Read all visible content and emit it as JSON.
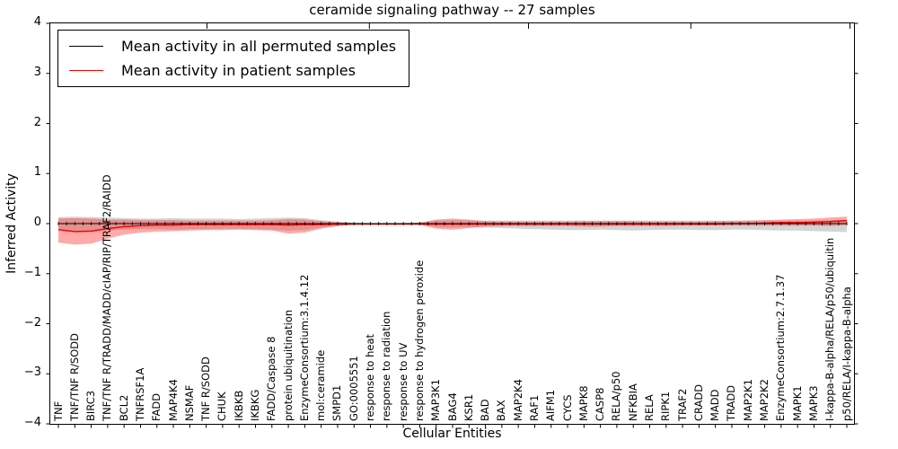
{
  "chart_data": {
    "type": "line",
    "title": "ceramide signaling pathway -- 27 samples",
    "xlabel": "Cellular Entities",
    "ylabel": "Inferred Activity",
    "ylim": [
      -4,
      4
    ],
    "yticks": [
      4,
      3,
      2,
      1,
      0,
      -1,
      -2,
      -3,
      -4
    ],
    "grid": false,
    "legend_position": "upper left",
    "categories": [
      "TNF",
      "TNF/TNF R/SODD",
      "BIRC3",
      "TNF/TNF R/TRADD/MADD/cIAP/RIP/TRAF2/RAIDD",
      "BCL2",
      "TNFRSF1A",
      "FADD",
      "MAP4K4",
      "NSMAF",
      "TNF R/SODD",
      "CHUK",
      "IKBKB",
      "IKBKG",
      "FADD/Caspase 8",
      "protein ubiquitination",
      "EnzymeConsortium:3.1.4.12",
      "mol:ceramide",
      "SMPD1",
      "GO:0005551",
      "response to heat",
      "response to radiation",
      "response to UV",
      "response to hydrogen peroxide",
      "MAP3K1",
      "BAG4",
      "KSR1",
      "BAD",
      "BAX",
      "MAP2K4",
      "RAF1",
      "AIFM1",
      "CYCS",
      "MAPK8",
      "CASP8",
      "RELA/p50",
      "NFKBIA",
      "RELA",
      "RIPK1",
      "TRAF2",
      "CRADD",
      "MADD",
      "TRADD",
      "MAP2K1",
      "MAP2K2",
      "EnzymeConsortium:2.7.1.37",
      "MAPK1",
      "MAPK3",
      "I-kappa-B-alpha/RELA/p50/ubiquitin",
      "p50/RELA/I-kappa-B-alpha"
    ],
    "series": [
      {
        "name": "Mean activity in all permuted samples",
        "color": "#000000",
        "band_color": "#aaaaaa",
        "values": [
          0,
          0,
          0,
          0,
          0,
          0,
          0,
          0,
          0,
          0,
          0,
          0,
          0,
          0,
          0,
          0,
          0,
          0,
          0,
          0,
          0,
          0,
          0,
          0,
          0,
          0,
          0,
          0,
          0,
          0,
          0,
          0,
          0,
          0,
          0,
          0,
          0,
          0,
          0,
          0,
          0,
          0,
          0,
          0,
          0,
          0,
          0,
          0,
          0
        ],
        "band_upper": [
          0.13,
          0.14,
          0.13,
          0.12,
          0.11,
          0.1,
          0.1,
          0.11,
          0.1,
          0.1,
          0.1,
          0.09,
          0.1,
          0.11,
          0.12,
          0.11,
          0.07,
          0.04,
          0.02,
          0.01,
          0.01,
          0.01,
          0.02,
          0.06,
          0.07,
          0.06,
          0.06,
          0.06,
          0.06,
          0.06,
          0.06,
          0.06,
          0.06,
          0.06,
          0.06,
          0.06,
          0.06,
          0.06,
          0.06,
          0.06,
          0.06,
          0.06,
          0.06,
          0.06,
          0.06,
          0.06,
          0.06,
          0.07,
          0.07
        ],
        "band_lower": [
          -0.13,
          -0.15,
          -0.14,
          -0.13,
          -0.12,
          -0.11,
          -0.11,
          -0.12,
          -0.11,
          -0.11,
          -0.1,
          -0.1,
          -0.11,
          -0.12,
          -0.14,
          -0.13,
          -0.08,
          -0.05,
          -0.02,
          -0.01,
          -0.01,
          -0.01,
          -0.02,
          -0.07,
          -0.08,
          -0.07,
          -0.08,
          -0.09,
          -0.1,
          -0.11,
          -0.12,
          -0.13,
          -0.13,
          -0.12,
          -0.13,
          -0.14,
          -0.13,
          -0.12,
          -0.12,
          -0.13,
          -0.13,
          -0.12,
          -0.12,
          -0.13,
          -0.14,
          -0.14,
          -0.15,
          -0.16,
          -0.17
        ]
      },
      {
        "name": "Mean activity in patient samples",
        "color": "#ff0000",
        "band_color": "#ff3333",
        "values": [
          -0.12,
          -0.16,
          -0.15,
          -0.1,
          -0.06,
          -0.04,
          -0.03,
          -0.03,
          -0.02,
          -0.02,
          -0.02,
          -0.02,
          -0.02,
          -0.02,
          -0.03,
          -0.02,
          -0.02,
          -0.01,
          -0.01,
          -0.01,
          -0.01,
          -0.01,
          -0.01,
          -0.01,
          -0.01,
          -0.01,
          -0.01,
          -0.01,
          -0.01,
          -0.01,
          -0.01,
          -0.01,
          -0.01,
          -0.01,
          -0.01,
          -0.01,
          -0.01,
          -0.01,
          -0.01,
          -0.01,
          -0.01,
          0.0,
          0.0,
          0.01,
          0.02,
          0.02,
          0.03,
          0.04,
          0.06
        ],
        "band_upper": [
          0.1,
          0.11,
          0.1,
          0.08,
          0.08,
          0.07,
          0.07,
          0.07,
          0.06,
          0.06,
          0.06,
          0.06,
          0.06,
          0.07,
          0.09,
          0.08,
          0.05,
          0.03,
          0.01,
          0.01,
          0.01,
          0.01,
          0.02,
          0.08,
          0.1,
          0.08,
          0.05,
          0.04,
          0.04,
          0.04,
          0.04,
          0.04,
          0.05,
          0.05,
          0.05,
          0.05,
          0.04,
          0.04,
          0.04,
          0.04,
          0.05,
          0.05,
          0.06,
          0.07,
          0.08,
          0.09,
          0.1,
          0.12,
          0.14
        ],
        "band_lower": [
          -0.38,
          -0.42,
          -0.4,
          -0.3,
          -0.22,
          -0.18,
          -0.16,
          -0.15,
          -0.14,
          -0.13,
          -0.13,
          -0.12,
          -0.13,
          -0.14,
          -0.2,
          -0.18,
          -0.1,
          -0.05,
          -0.02,
          -0.01,
          -0.01,
          -0.01,
          -0.02,
          -0.1,
          -0.12,
          -0.09,
          -0.06,
          -0.05,
          -0.05,
          -0.05,
          -0.05,
          -0.05,
          -0.06,
          -0.06,
          -0.05,
          -0.05,
          -0.05,
          -0.05,
          -0.04,
          -0.04,
          -0.04,
          -0.04,
          -0.04,
          -0.04,
          -0.04,
          -0.04,
          -0.04,
          -0.05,
          -0.03
        ]
      }
    ]
  }
}
